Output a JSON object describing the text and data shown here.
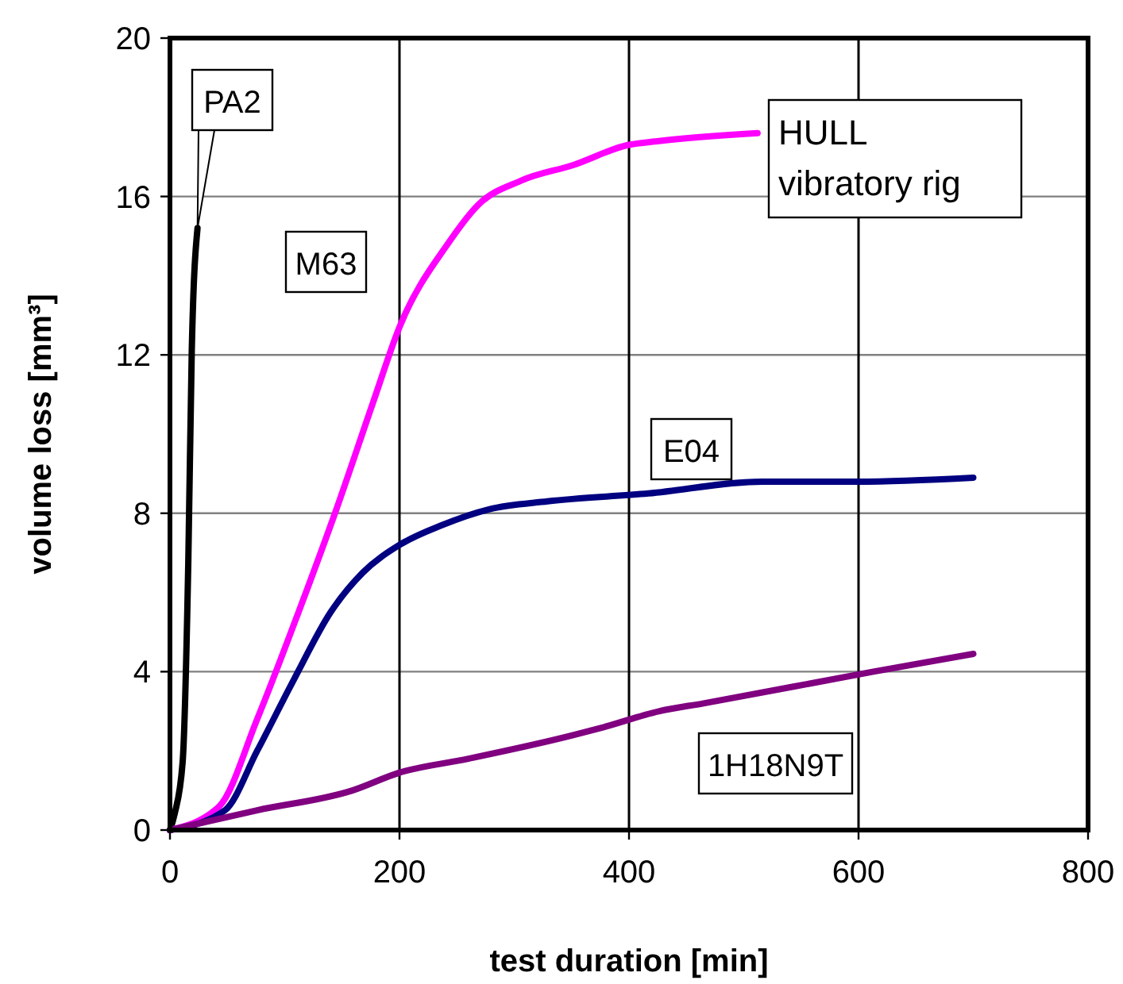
{
  "chart_data": {
    "type": "line",
    "xlabel": "test duration [min]",
    "ylabel": "volume loss [mm³]",
    "xlim": [
      0,
      800
    ],
    "xticks": [
      0,
      200,
      400,
      600,
      800
    ],
    "ylim": [
      0,
      20
    ],
    "yticks": [
      0,
      4,
      8,
      12,
      16,
      20
    ],
    "grid": true,
    "annotations": [
      "HULL\nvibratory rig"
    ],
    "series": [
      {
        "name": "PA2",
        "color": "#000000",
        "x": [
          0,
          4,
          11,
          16,
          19,
          24
        ],
        "values": [
          0,
          0.4,
          1.7,
          6.8,
          12.1,
          15.2
        ]
      },
      {
        "name": "M63",
        "color": "#ff00ff",
        "x": [
          0,
          43,
          76,
          112,
          145,
          177,
          200,
          242,
          269,
          306,
          352,
          399,
          426,
          512
        ],
        "values": [
          0,
          0.6,
          2.8,
          5.5,
          8.1,
          10.8,
          12.7,
          14.8,
          15.8,
          16.4,
          16.8,
          17.3,
          17.4,
          17.6
        ]
      },
      {
        "name": "E04",
        "color": "#000080",
        "x": [
          0,
          48,
          76,
          108,
          140,
          168,
          200,
          237,
          278,
          329,
          417,
          516,
          599,
          700
        ],
        "values": [
          0,
          0.5,
          2.0,
          3.8,
          5.5,
          6.5,
          7.2,
          7.7,
          8.1,
          8.3,
          8.5,
          8.8,
          8.8,
          8.9
        ]
      },
      {
        "name": "1H18N9T",
        "color": "#800080",
        "x": [
          0,
          76,
          159,
          200,
          260,
          352,
          378,
          426,
          465,
          613,
          700
        ],
        "values": [
          0,
          0.5,
          1.0,
          1.45,
          1.8,
          2.4,
          2.6,
          3.0,
          3.2,
          4.0,
          4.45
        ]
      }
    ]
  }
}
